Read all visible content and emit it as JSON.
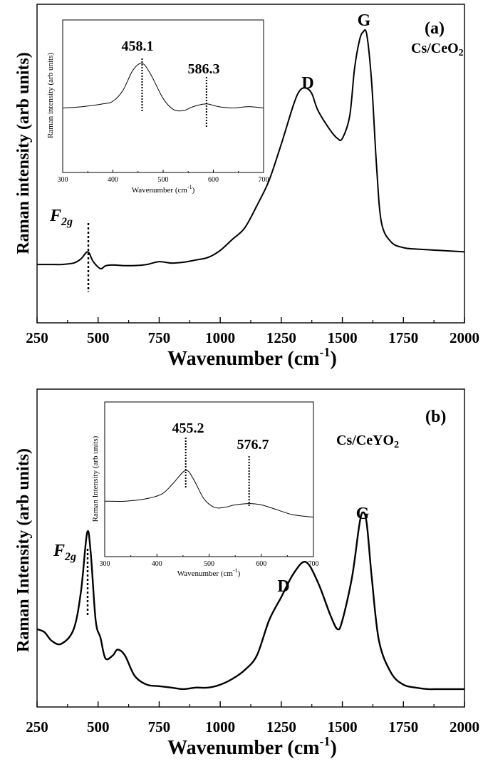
{
  "figure": {
    "panels": [
      {
        "id": "a",
        "panel_label": "(a)",
        "sample_label_main": "Cs/CeO",
        "sample_label_sub": "2",
        "ylabel": "Raman intensity (arb units)",
        "xlabel_main": "Wavenumber (cm",
        "xlabel_sup": "-1",
        "xlabel_close": ")",
        "f2g_main": "F",
        "f2g_sub": "2g",
        "peak_D": "D",
        "peak_G": "G",
        "inset": {
          "ylabel": "Raman intensity (arb units)",
          "xlabel_main": "Wavenumber (cm",
          "xlabel_sup": "-1",
          "xlabel_close": ")",
          "peak1_label": "458.1",
          "peak2_label": "586.3"
        }
      },
      {
        "id": "b",
        "panel_label": "(b)",
        "sample_label_main": "Cs/CeYO",
        "sample_label_sub": "2",
        "ylabel": "Raman Intensity (arb units)",
        "xlabel_main": "Wavenumber (cm",
        "xlabel_sup": "-1",
        "xlabel_close": ")",
        "f2g_main": "F",
        "f2g_sub": "2g",
        "peak_D": "D",
        "peak_G": "G",
        "inset": {
          "ylabel": "Raman Intensity (arb units)",
          "xlabel_main": "Wavenumber (cm",
          "xlabel_sup": "-1",
          "xlabel_close": ")",
          "peak1_label": "455.2",
          "peak2_label": "576.7"
        }
      }
    ]
  },
  "chart_data": [
    {
      "type": "line",
      "panel": "(a)",
      "xlabel": "Wavenumber (cm-1)",
      "ylabel": "Raman intensity (arb units)",
      "xlim": [
        250,
        2000
      ],
      "ylim": [
        0,
        100
      ],
      "x_ticks": [
        250,
        500,
        750,
        1000,
        1250,
        1500,
        1750,
        2000
      ],
      "y_ticks_labeled": false,
      "series": [
        {
          "points": [
            [
              250,
              15
            ],
            [
              300,
              15
            ],
            [
              350,
              15
            ],
            [
              400,
              15.5
            ],
            [
              430,
              17
            ],
            [
              458,
              19.5
            ],
            [
              480,
              16
            ],
            [
              510,
              13.5
            ],
            [
              530,
              14.5
            ],
            [
              560,
              14.8
            ],
            [
              600,
              14.6
            ],
            [
              650,
              14.6
            ],
            [
              700,
              15
            ],
            [
              750,
              16
            ],
            [
              800,
              15.5
            ],
            [
              850,
              15.8
            ],
            [
              900,
              16.6
            ],
            [
              950,
              17.5
            ],
            [
              1000,
              20
            ],
            [
              1050,
              24
            ],
            [
              1100,
              28
            ],
            [
              1150,
              36
            ],
            [
              1200,
              45
            ],
            [
              1250,
              58
            ],
            [
              1300,
              72
            ],
            [
              1325,
              77
            ],
            [
              1350,
              78
            ],
            [
              1375,
              76
            ],
            [
              1400,
              70
            ],
            [
              1450,
              63
            ],
            [
              1480,
              60
            ],
            [
              1500,
              60
            ],
            [
              1530,
              68
            ],
            [
              1550,
              85
            ],
            [
              1570,
              95
            ],
            [
              1585,
              98
            ],
            [
              1600,
              97
            ],
            [
              1620,
              80
            ],
            [
              1640,
              50
            ],
            [
              1660,
              30
            ],
            [
              1700,
              23
            ],
            [
              1750,
              21
            ],
            [
              1800,
              20.5
            ],
            [
              1900,
              20
            ],
            [
              2000,
              19.5
            ]
          ]
        }
      ],
      "annotations": [
        "F2g at 458.1",
        "D",
        "G",
        "(a)",
        "Cs/CeO2"
      ],
      "inset": {
        "type": "line",
        "xlabel": "Wavenumber (cm-1)",
        "ylabel": "Raman intensity (arb units)",
        "xlim": [
          300,
          700
        ],
        "x_ticks": [
          300,
          400,
          500,
          600,
          700
        ],
        "ylim": [
          0,
          100
        ],
        "peak_markers": [
          458.1,
          586.3
        ],
        "series": [
          {
            "points": [
              [
                300,
                35
              ],
              [
                340,
                36
              ],
              [
                380,
                38
              ],
              [
                400,
                40
              ],
              [
                420,
                48
              ],
              [
                440,
                63
              ],
              [
                458,
                68
              ],
              [
                475,
                60
              ],
              [
                500,
                42
              ],
              [
                520,
                34
              ],
              [
                540,
                33
              ],
              [
                560,
                36
              ],
              [
                586,
                38
              ],
              [
                610,
                36
              ],
              [
                640,
                35
              ],
              [
                670,
                36
              ],
              [
                700,
                35
              ]
            ]
          }
        ]
      }
    },
    {
      "type": "line",
      "panel": "(b)",
      "xlabel": "Wavenumber (cm-1)",
      "ylabel": "Raman Intensity (arb units)",
      "xlim": [
        250,
        2000
      ],
      "ylim": [
        0,
        100
      ],
      "x_ticks": [
        250,
        500,
        750,
        1000,
        1250,
        1500,
        1750,
        2000
      ],
      "y_ticks_labeled": false,
      "series": [
        {
          "points": [
            [
              250,
              22
            ],
            [
              280,
              21
            ],
            [
              310,
              18
            ],
            [
              350,
              17
            ],
            [
              400,
              22
            ],
            [
              430,
              35
            ],
            [
              455,
              55
            ],
            [
              470,
              48
            ],
            [
              490,
              25
            ],
            [
              510,
              19
            ],
            [
              530,
              12
            ],
            [
              560,
              13
            ],
            [
              580,
              15
            ],
            [
              610,
              13
            ],
            [
              650,
              6
            ],
            [
              700,
              3
            ],
            [
              750,
              2.5
            ],
            [
              800,
              2
            ],
            [
              850,
              1.5
            ],
            [
              900,
              2
            ],
            [
              950,
              2
            ],
            [
              1000,
              3
            ],
            [
              1050,
              5
            ],
            [
              1100,
              8
            ],
            [
              1150,
              13
            ],
            [
              1200,
              25
            ],
            [
              1250,
              33
            ],
            [
              1300,
              41
            ],
            [
              1350,
              45
            ],
            [
              1400,
              38
            ],
            [
              1450,
              27
            ],
            [
              1480,
              22
            ],
            [
              1500,
              25
            ],
            [
              1540,
              40
            ],
            [
              1570,
              58
            ],
            [
              1585,
              62
            ],
            [
              1600,
              58
            ],
            [
              1620,
              40
            ],
            [
              1650,
              18
            ],
            [
              1700,
              7
            ],
            [
              1750,
              3
            ],
            [
              1800,
              2
            ],
            [
              1850,
              1.5
            ],
            [
              1900,
              1.5
            ],
            [
              2000,
              1.5
            ]
          ]
        }
      ],
      "annotations": [
        "F2g at 455.2",
        "D",
        "G",
        "(b)",
        "Cs/CeYO2"
      ],
      "inset": {
        "type": "line",
        "xlabel": "Wavenumber (cm-1)",
        "ylabel": "Raman Intensity (arb units)",
        "xlim": [
          300,
          700
        ],
        "x_ticks": [
          300,
          400,
          500,
          600,
          700
        ],
        "ylim": [
          0,
          100
        ],
        "peak_markers": [
          455.2,
          576.7
        ],
        "series": [
          {
            "points": [
              [
                300,
                40
              ],
              [
                340,
                40
              ],
              [
                380,
                42
              ],
              [
                410,
                46
              ],
              [
                430,
                54
              ],
              [
                455,
                65
              ],
              [
                470,
                58
              ],
              [
                490,
                42
              ],
              [
                510,
                35
              ],
              [
                530,
                35
              ],
              [
                550,
                37
              ],
              [
                577,
                38
              ],
              [
                600,
                37
              ],
              [
                630,
                33
              ],
              [
                660,
                29
              ],
              [
                700,
                27
              ]
            ]
          }
        ]
      }
    }
  ]
}
